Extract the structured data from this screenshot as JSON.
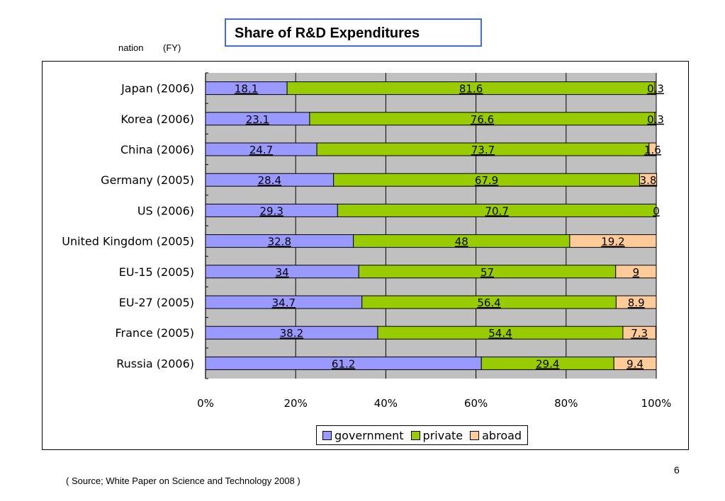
{
  "header": {
    "nation_label": "nation",
    "fy_label": "(FY)"
  },
  "chart_data": {
    "type": "bar",
    "orientation": "horizontal",
    "stacked": true,
    "title": "Share of R&D Expenditures",
    "categories": [
      "Japan (2006)",
      "Korea (2006)",
      "China (2006)",
      "Germany (2005)",
      "US (2006)",
      "United Kingdom (2005)",
      "EU-15 (2005)",
      "EU-27 (2005)",
      "France (2005)",
      "Russia (2006)"
    ],
    "series": [
      {
        "name": "government",
        "color": "#9999ff",
        "values": [
          18.1,
          23.1,
          24.7,
          28.4,
          29.3,
          32.8,
          34,
          34.7,
          38.2,
          61.2
        ]
      },
      {
        "name": "private",
        "color": "#99cc00",
        "values": [
          81.6,
          76.6,
          73.7,
          67.9,
          70.7,
          48,
          57,
          56.4,
          54.4,
          29.4
        ]
      },
      {
        "name": "abroad",
        "color": "#ffcc99",
        "values": [
          0.3,
          0.3,
          1.6,
          3.8,
          0,
          19.2,
          9,
          8.9,
          7.3,
          9.4
        ]
      }
    ],
    "x_ticks": [
      "0%",
      "20%",
      "40%",
      "60%",
      "80%",
      "100%"
    ],
    "xlim": [
      0,
      100
    ],
    "plot_background": "#c0c0c0",
    "grid": true,
    "legend_position": "bottom"
  },
  "footer": {
    "page_number": "6",
    "source": "( Source; White Paper on Science and Technology 2008 )"
  }
}
